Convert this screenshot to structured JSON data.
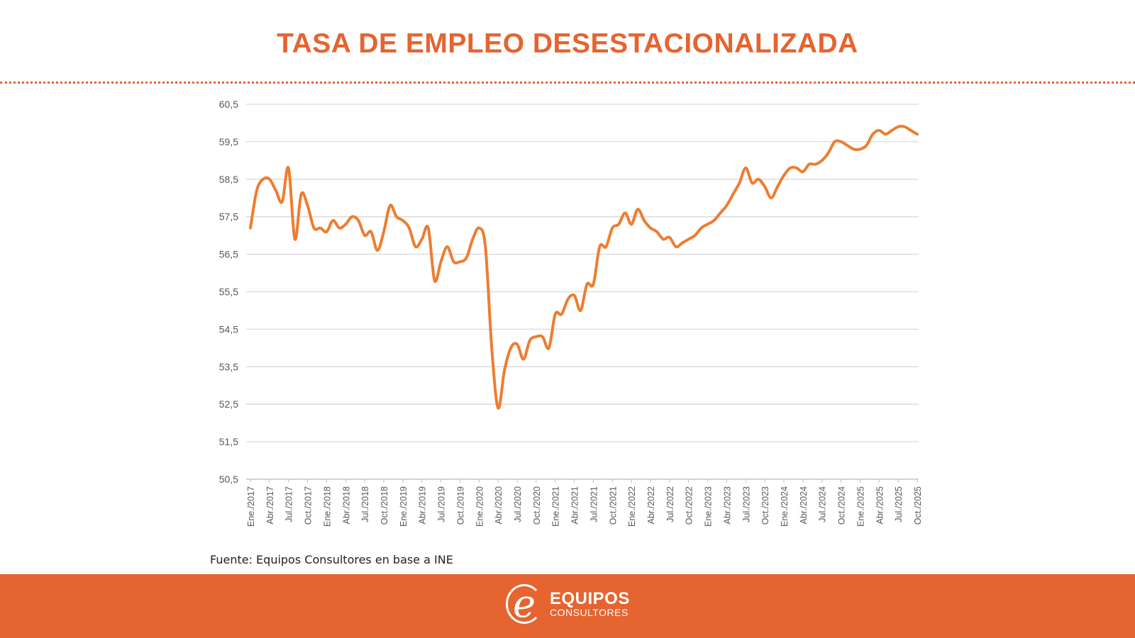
{
  "header": {
    "title": "TASA DE EMPLEO DESESTACIONALIZADA"
  },
  "source": "Fuente: Equipos Consultores en base a INE",
  "footer": {
    "logo_main": "EQUIPOS",
    "logo_sub": "CONSULTORES",
    "logo_letter": "e",
    "color": "#E5642F"
  },
  "chart_data": {
    "type": "line",
    "title": "TASA DE EMPLEO DESESTACIONALIZADA",
    "xlabel": "",
    "ylabel": "",
    "ylim": [
      50.5,
      60.5
    ],
    "yticks": [
      "50,5",
      "51,5",
      "52,5",
      "53,5",
      "54,5",
      "55,5",
      "56,5",
      "57,5",
      "58,5",
      "59,5",
      "60,5"
    ],
    "grid": true,
    "line_color": "#ED7D31",
    "x_start": "Ene./2017",
    "x_end": "Oct./2025",
    "frequency": "monthly",
    "xtick_labels": [
      "Ene./2017",
      "Abr./2017",
      "Jul./2017",
      "Oct./2017",
      "Ene./2018",
      "Abr./2018",
      "Jul./2018",
      "Oct./2018",
      "Ene./2019",
      "Abr./2019",
      "Jul./2019",
      "Oct./2019",
      "Ene./2020",
      "Abr./2020",
      "Jul./2020",
      "Oct./2020",
      "Ene./2021",
      "Abr./2021",
      "Jul./2021",
      "Oct./2021",
      "Ene./2022",
      "Abr./2022",
      "Jul./2022",
      "Oct./2022",
      "Ene./2023",
      "Abr./2023",
      "Jul./2023",
      "Oct./2023",
      "Ene./2024",
      "Abr./2024",
      "Jul./2024",
      "Oct./2024",
      "Ene./2025",
      "Abr./2025",
      "Jul./2025",
      "Oct./2025"
    ],
    "series": [
      {
        "name": "Tasa de empleo",
        "values": [
          57.2,
          58.2,
          58.5,
          58.5,
          58.2,
          57.9,
          58.8,
          56.9,
          58.1,
          57.8,
          57.2,
          57.2,
          57.1,
          57.4,
          57.2,
          57.3,
          57.5,
          57.4,
          57.0,
          57.1,
          56.6,
          57.1,
          57.8,
          57.5,
          57.4,
          57.2,
          56.7,
          56.9,
          57.2,
          55.8,
          56.3,
          56.7,
          56.3,
          56.3,
          56.4,
          56.9,
          57.2,
          56.7,
          54.0,
          52.4,
          53.4,
          54.0,
          54.1,
          53.7,
          54.2,
          54.3,
          54.3,
          54.0,
          54.9,
          54.9,
          55.3,
          55.4,
          55.0,
          55.7,
          55.7,
          56.7,
          56.7,
          57.2,
          57.3,
          57.6,
          57.3,
          57.7,
          57.4,
          57.2,
          57.1,
          56.9,
          56.95,
          56.7,
          56.8,
          56.9,
          57.0,
          57.2,
          57.3,
          57.4,
          57.6,
          57.8,
          58.1,
          58.4,
          58.8,
          58.4,
          58.5,
          58.3,
          58.0,
          58.3,
          58.6,
          58.8,
          58.8,
          58.7,
          58.9,
          58.9,
          59.0,
          59.2,
          59.5,
          59.5,
          59.4,
          59.3,
          59.3,
          59.4,
          59.7,
          59.8,
          59.7,
          59.8,
          59.9,
          59.9,
          59.8,
          59.7
        ]
      }
    ]
  }
}
